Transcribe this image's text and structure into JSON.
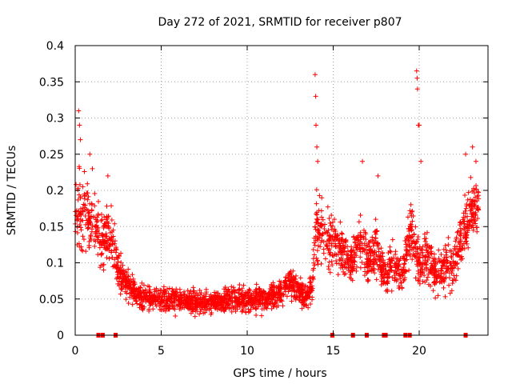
{
  "chart_data": {
    "type": "scatter",
    "title": "Day 272 of 2021, SRMTID for receiver p807",
    "xlabel": "GPS time / hours",
    "ylabel": "SRMTID / TECUs",
    "xlim": [
      0,
      24
    ],
    "ylim": [
      0,
      0.4
    ],
    "x_ticks": [
      0,
      5,
      10,
      15,
      20
    ],
    "x_tick_labels": [
      "0",
      "5",
      "10",
      "15",
      "20"
    ],
    "y_ticks": [
      0,
      0.05,
      0.1,
      0.15,
      0.2,
      0.25,
      0.3,
      0.35,
      0.4
    ],
    "y_tick_labels": [
      "0",
      "0.05",
      "0.1",
      "0.15",
      "0.2",
      "0.25",
      "0.3",
      "0.35",
      "0.4"
    ],
    "grid": true,
    "marker": "+",
    "color": "#ff0000",
    "envelope": {
      "description": "approximate median SRMTID level vs. hour",
      "x": [
        0,
        0.5,
        1,
        1.5,
        2,
        2.5,
        3,
        3.5,
        4,
        5,
        6,
        7,
        8,
        9,
        10,
        11,
        12,
        12.5,
        13,
        13.5,
        13.8,
        14,
        14.5,
        15,
        15.5,
        16,
        16.5,
        17,
        17.5,
        18,
        18.5,
        19,
        19.5,
        20,
        20.5,
        21,
        21.5,
        22,
        22.5,
        23,
        23.5
      ],
      "y": [
        0.17,
        0.16,
        0.15,
        0.13,
        0.14,
        0.09,
        0.07,
        0.06,
        0.05,
        0.05,
        0.05,
        0.045,
        0.045,
        0.05,
        0.05,
        0.05,
        0.06,
        0.075,
        0.06,
        0.05,
        0.07,
        0.15,
        0.14,
        0.13,
        0.12,
        0.1,
        0.13,
        0.1,
        0.12,
        0.08,
        0.1,
        0.08,
        0.14,
        0.1,
        0.11,
        0.08,
        0.1,
        0.09,
        0.14,
        0.17,
        0.18
      ],
      "spread": [
        0.06,
        0.06,
        0.05,
        0.05,
        0.05,
        0.03,
        0.025,
        0.02,
        0.02,
        0.02,
        0.02,
        0.018,
        0.018,
        0.02,
        0.02,
        0.02,
        0.022,
        0.025,
        0.02,
        0.02,
        0.03,
        0.06,
        0.05,
        0.04,
        0.04,
        0.035,
        0.045,
        0.035,
        0.04,
        0.03,
        0.035,
        0.03,
        0.05,
        0.04,
        0.04,
        0.035,
        0.04,
        0.035,
        0.04,
        0.05,
        0.05
      ]
    },
    "spikes": [
      {
        "x": 0.2,
        "y": 0.31
      },
      {
        "x": 0.25,
        "y": 0.29
      },
      {
        "x": 0.3,
        "y": 0.27
      },
      {
        "x": 0.85,
        "y": 0.25
      },
      {
        "x": 1.0,
        "y": 0.23
      },
      {
        "x": 1.9,
        "y": 0.22
      },
      {
        "x": 13.95,
        "y": 0.36
      },
      {
        "x": 13.98,
        "y": 0.33
      },
      {
        "x": 14.0,
        "y": 0.29
      },
      {
        "x": 14.05,
        "y": 0.26
      },
      {
        "x": 14.1,
        "y": 0.24
      },
      {
        "x": 16.7,
        "y": 0.24
      },
      {
        "x": 17.6,
        "y": 0.22
      },
      {
        "x": 19.85,
        "y": 0.365
      },
      {
        "x": 19.88,
        "y": 0.355
      },
      {
        "x": 19.9,
        "y": 0.34
      },
      {
        "x": 19.95,
        "y": 0.29
      },
      {
        "x": 20.0,
        "y": 0.29
      },
      {
        "x": 20.1,
        "y": 0.24
      },
      {
        "x": 22.7,
        "y": 0.25
      },
      {
        "x": 23.1,
        "y": 0.26
      },
      {
        "x": 23.3,
        "y": 0.24
      }
    ],
    "gap_markers_x": [
      1.35,
      1.6,
      2.35,
      14.95,
      16.15,
      16.95,
      17.95,
      18.05,
      19.2,
      19.45,
      22.7
    ],
    "gap_marker_y": 0
  }
}
